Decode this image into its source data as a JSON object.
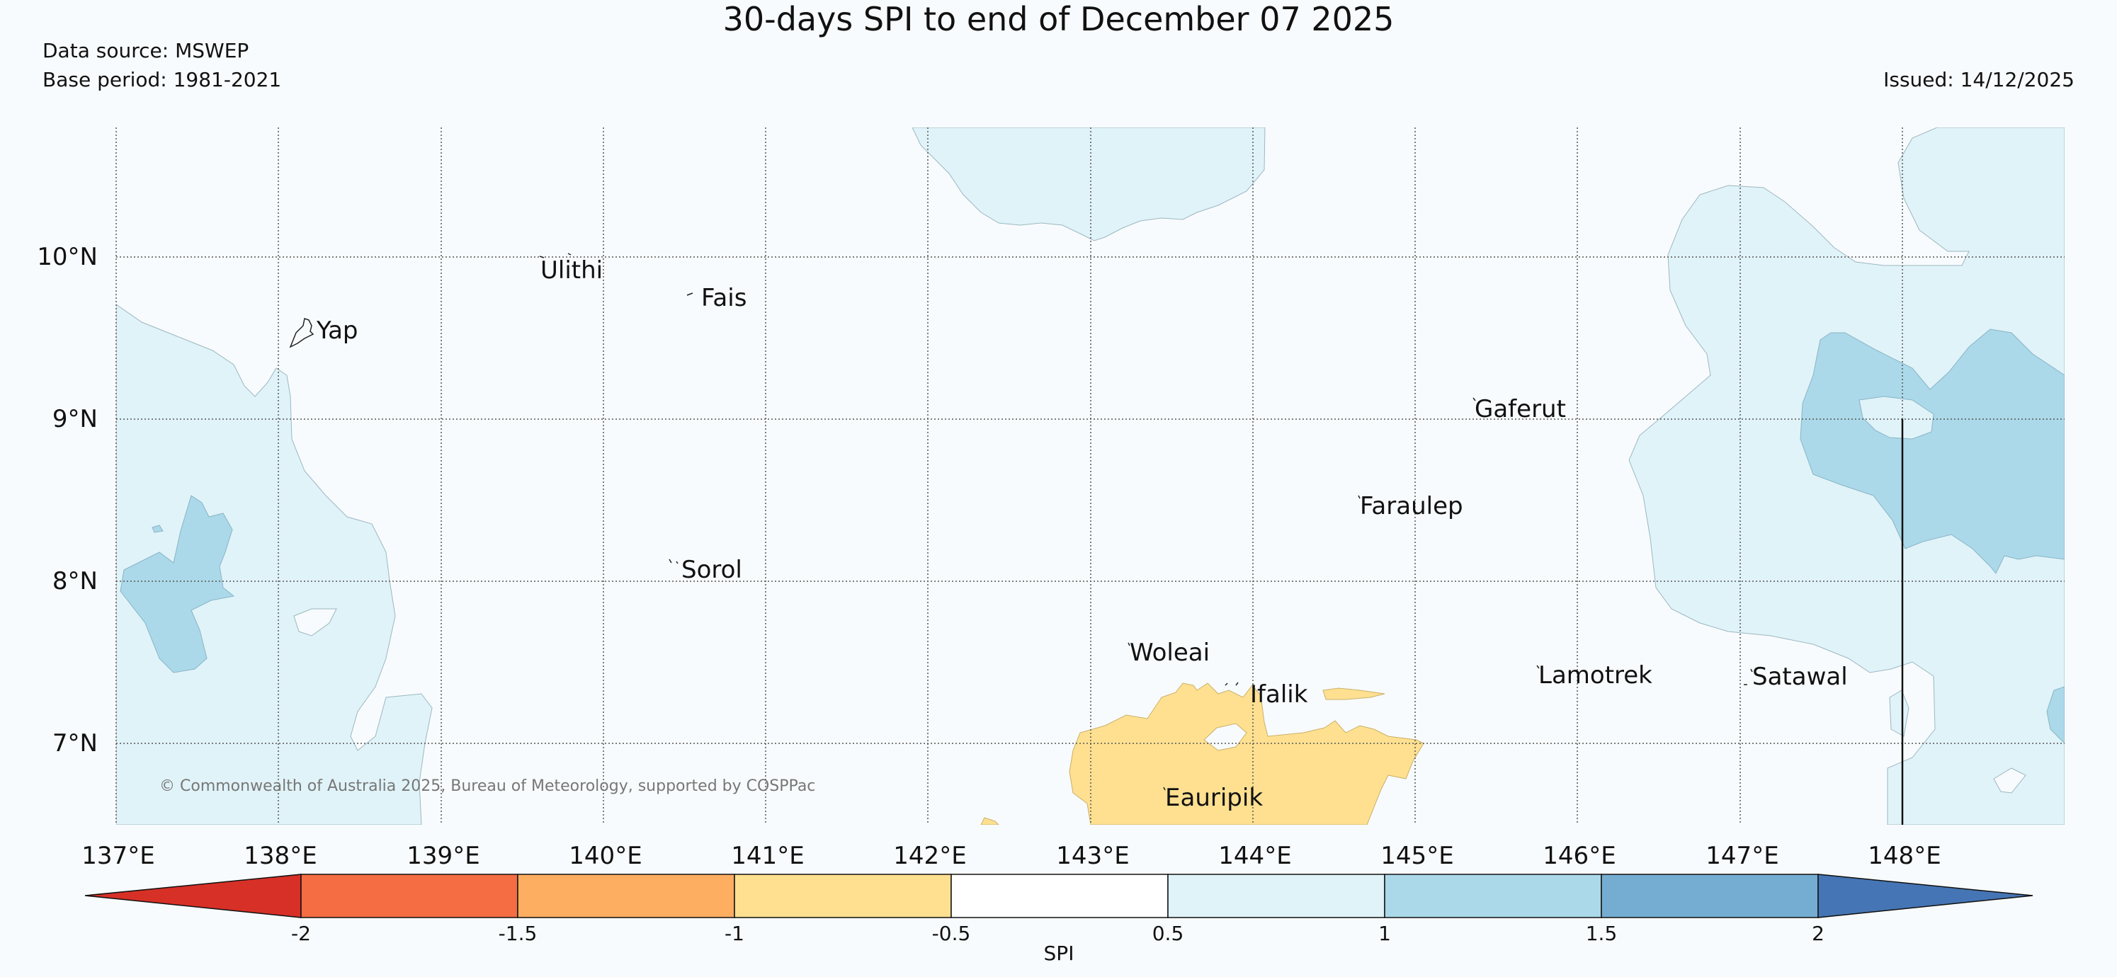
{
  "header": {
    "title": "30-days SPI to end of December 07 2025",
    "data_source": "Data source: MSWEP",
    "base_period": "Base period: 1981-2021",
    "issued": "Issued: 14/12/2025"
  },
  "map": {
    "longitude_labels": [
      "137°E",
      "138°E",
      "139°E",
      "140°E",
      "141°E",
      "142°E",
      "143°E",
      "144°E",
      "145°E",
      "146°E",
      "147°E",
      "148°E"
    ],
    "latitude_labels": [
      "10°N",
      "9°N",
      "8°N",
      "7°N"
    ],
    "places": [
      {
        "name": "Ulithi"
      },
      {
        "name": "Fais"
      },
      {
        "name": "Yap"
      },
      {
        "name": "Gaferut"
      },
      {
        "name": "Faraulep"
      },
      {
        "name": "Sorol"
      },
      {
        "name": "Woleai"
      },
      {
        "name": "Ifalik"
      },
      {
        "name": "Lamotrek"
      },
      {
        "name": "Satawal"
      },
      {
        "name": "Eauripik"
      }
    ],
    "copyright": "© Commonwealth of Australia 2025, Bureau of Meteorology, supported by COSPPac"
  },
  "colorbar": {
    "label": "SPI",
    "tick_labels": [
      "-2",
      "-1.5",
      "-1",
      "-0.5",
      "0.5",
      "1",
      "1.5",
      "2"
    ],
    "colors": {
      "extreme_dry": "#d73027",
      "severe_dry": "#f46d43",
      "moderate_dry": "#fdae61",
      "mild_dry": "#fee090",
      "normal": "#ffffff",
      "mild_wet": "#e0f3f8",
      "moderate_wet": "#abd9e9",
      "severe_wet": "#74add1",
      "extreme_wet": "#4575b4"
    }
  }
}
